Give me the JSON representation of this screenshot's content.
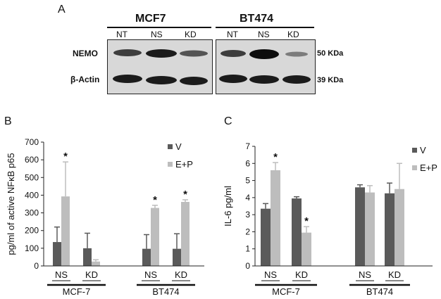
{
  "figure": {
    "panel_a": {
      "label": "A",
      "groups": [
        {
          "title": "MCF7",
          "lanes": [
            "NT",
            "NS",
            "KD"
          ]
        },
        {
          "title": "BT474",
          "lanes": [
            "NT",
            "NS",
            "KD"
          ]
        }
      ],
      "rows": [
        {
          "label": "NEMO",
          "size": "50 KDa"
        },
        {
          "label": "β-Actin",
          "size": "39 KDa"
        }
      ]
    },
    "panel_b": {
      "label": "B"
    },
    "panel_c": {
      "label": "C"
    }
  },
  "chart_data": [
    {
      "type": "bar",
      "ylabel": "pg/ml of active NFκB p65",
      "ylim": [
        0,
        700
      ],
      "yticks": [
        0,
        100,
        200,
        300,
        400,
        500,
        600,
        700
      ],
      "categories": [
        "NS",
        "KD",
        "NS",
        "KD"
      ],
      "groups": [
        "MCF-7",
        "BT474"
      ],
      "series": [
        {
          "name": "V",
          "color": "#5a5a5a",
          "values": [
            135,
            100,
            97,
            97
          ],
          "errors": [
            85,
            85,
            80,
            85
          ]
        },
        {
          "name": "E+P",
          "color": "#bdbdbd",
          "values": [
            393,
            25,
            328,
            362
          ],
          "errors": [
            195,
            10,
            15,
            12
          ]
        }
      ],
      "significance": [
        {
          "series": 1,
          "index": 0,
          "mark": "*"
        },
        {
          "series": 1,
          "index": 2,
          "mark": "*"
        },
        {
          "series": 1,
          "index": 3,
          "mark": "*"
        }
      ],
      "legend": "top-right",
      "grid": false
    },
    {
      "type": "bar",
      "ylabel": "IL-6 pg/ml",
      "ylim": [
        0,
        7
      ],
      "yticks": [
        0,
        1,
        2,
        3,
        4,
        5,
        6,
        7
      ],
      "categories": [
        "NS",
        "KD",
        "NS",
        "KD"
      ],
      "groups": [
        "MCF-7",
        "BT474"
      ],
      "series": [
        {
          "name": "V",
          "color": "#5a5a5a",
          "values": [
            3.35,
            3.95,
            4.6,
            4.25
          ],
          "errors": [
            0.3,
            0.1,
            0.15,
            0.6
          ]
        },
        {
          "name": "E+P",
          "color": "#bdbdbd",
          "values": [
            5.6,
            1.95,
            4.3,
            4.5
          ],
          "errors": [
            0.45,
            0.35,
            0.4,
            1.5
          ]
        }
      ],
      "significance": [
        {
          "series": 1,
          "index": 0,
          "mark": "*"
        },
        {
          "series": 1,
          "index": 1,
          "mark": "*"
        }
      ],
      "legend": "top-right",
      "grid": false
    }
  ]
}
